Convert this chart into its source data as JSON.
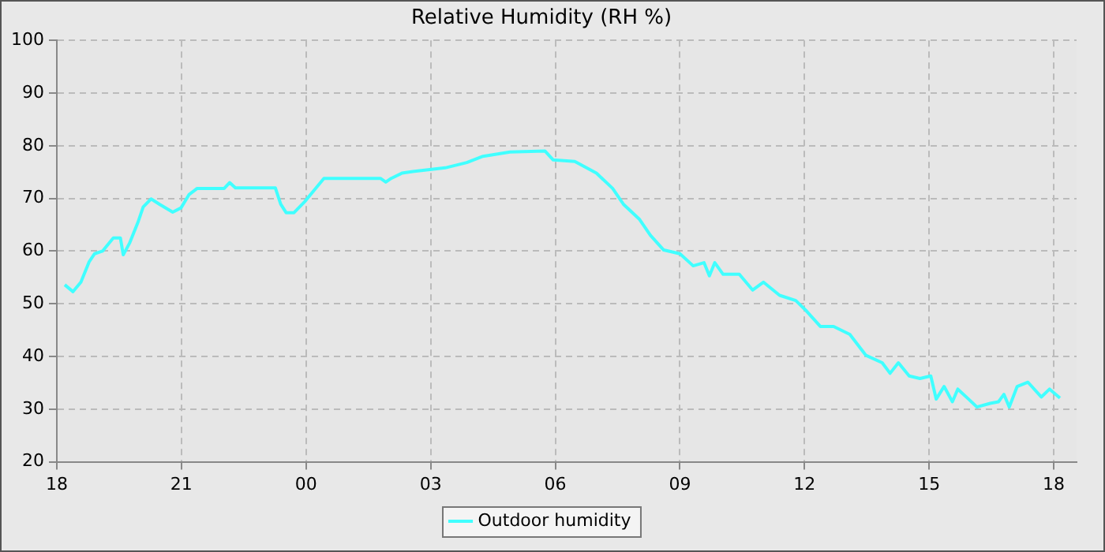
{
  "chart_data": {
    "type": "line",
    "title": "Relative Humidity (RH %)",
    "x": [
      18.19,
      18.39,
      18.58,
      18.78,
      18.91,
      19.1,
      19.36,
      19.53,
      19.6,
      19.75,
      19.95,
      20.08,
      20.27,
      20.47,
      20.79,
      20.99,
      21.18,
      21.38,
      22.03,
      22.16,
      22.3,
      23.26,
      23.39,
      23.52,
      23.71,
      23.97,
      24.23,
      24.43,
      25.79,
      25.92,
      26.05,
      26.31,
      26.57,
      27.35,
      27.87,
      28.26,
      28.91,
      29.75,
      29.95,
      30.47,
      30.99,
      31.38,
      31.64,
      32.03,
      32.29,
      32.61,
      33.0,
      33.32,
      33.58,
      33.71,
      33.84,
      34.04,
      34.43,
      34.75,
      35.01,
      35.4,
      35.79,
      36.05,
      36.38,
      36.7,
      37.09,
      37.48,
      37.87,
      38.06,
      38.26,
      38.52,
      38.78,
      39.04,
      39.17,
      39.36,
      39.56,
      39.69,
      39.95,
      40.15,
      40.47,
      40.67,
      40.8,
      40.93,
      41.12,
      41.38,
      41.7,
      41.9,
      42.15
    ],
    "series": [
      {
        "name": "Outdoor humidity",
        "color": "#40ffff",
        "values": [
          53.6,
          52.3,
          54.1,
          58,
          59.5,
          60,
          62.5,
          62.5,
          59.3,
          61.5,
          65.4,
          68.4,
          69.9,
          68.9,
          67.4,
          68.2,
          70.7,
          71.9,
          71.9,
          73,
          72,
          72,
          68.9,
          67.3,
          67.3,
          69.4,
          71.9,
          73.8,
          73.8,
          73.1,
          73.8,
          74.8,
          75.1,
          75.8,
          76.8,
          78,
          78.8,
          79,
          77.3,
          77,
          74.8,
          71.9,
          68.9,
          66,
          63,
          60.2,
          59.5,
          57.2,
          57.8,
          55.3,
          57.8,
          55.6,
          55.6,
          52.6,
          54.1,
          51.6,
          50.6,
          48.6,
          45.7,
          45.7,
          44.2,
          40.2,
          38.8,
          36.8,
          38.8,
          36.3,
          35.8,
          36.3,
          31.9,
          34.3,
          31.4,
          33.8,
          31.9,
          30.4,
          31.1,
          31.4,
          32.8,
          30.4,
          34.3,
          35.1,
          32.3,
          33.8,
          32.1
        ]
      }
    ],
    "xlim": [
      18,
      42.55
    ],
    "xticks": [
      {
        "value": 18,
        "label": "18"
      },
      {
        "value": 21,
        "label": "21"
      },
      {
        "value": 24,
        "label": "00"
      },
      {
        "value": 27,
        "label": "03"
      },
      {
        "value": 30,
        "label": "06"
      },
      {
        "value": 33,
        "label": "09"
      },
      {
        "value": 36,
        "label": "12"
      },
      {
        "value": 39,
        "label": "15"
      },
      {
        "value": 42,
        "label": "18"
      }
    ],
    "ylim": [
      20,
      100
    ],
    "yticks": [
      20,
      30,
      40,
      50,
      60,
      70,
      80,
      90,
      100
    ],
    "grid": true,
    "legend": "bottom",
    "marker": "none",
    "line_style": "solid"
  }
}
